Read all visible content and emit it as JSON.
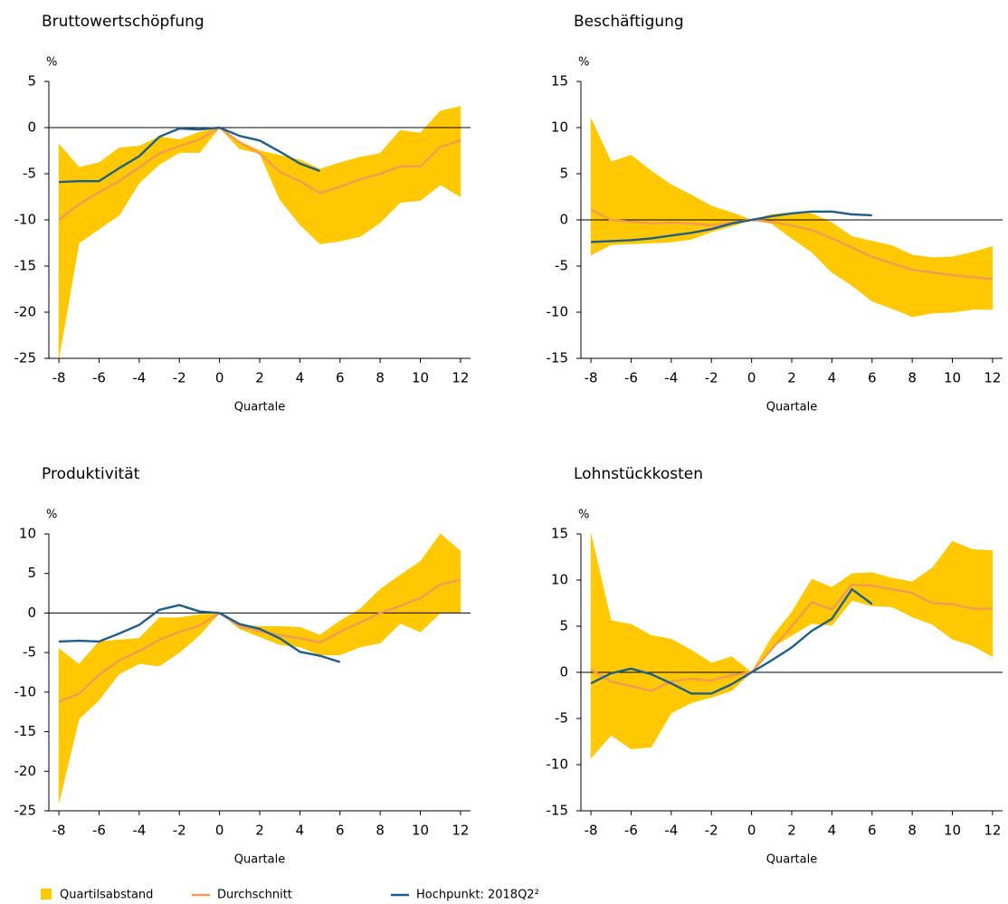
{
  "legend": [
    {
      "name": "Quartilsabstand",
      "color": "#ffc800"
    },
    {
      "name": "Durchschnitt",
      "color": "#f39a56"
    },
    {
      "name": "Hochpunkt: 2018Q2²",
      "color": "#1d5f8a"
    }
  ],
  "chart_data": [
    {
      "type": "line",
      "title": "Bruttowertschöpfung",
      "y_label": "%",
      "x_label": "Quartale",
      "x": [
        -8,
        -7,
        -6,
        -5,
        -4,
        -3,
        -2,
        -1,
        0,
        1,
        2,
        3,
        4,
        5,
        6,
        7,
        8,
        9,
        10,
        11,
        12
      ],
      "xlim": [
        -8.5,
        12.5
      ],
      "xticks": [
        -8,
        -6,
        -4,
        -2,
        0,
        2,
        4,
        6,
        8,
        10,
        12
      ],
      "ylim": [
        -25,
        5
      ],
      "yticks": [
        -25,
        -20,
        -15,
        -10,
        -5,
        0,
        5
      ],
      "band": {
        "upper": [
          -1.8,
          -4.3,
          -3.8,
          -2.2,
          -2,
          -1,
          -1.3,
          -0.5,
          0,
          -1.5,
          -2.5,
          -3,
          -3.5,
          -4.5,
          -3.8,
          -3.2,
          -2.8,
          -0.3,
          -0.6,
          1.8,
          2.3
        ],
        "lower": [
          -25,
          -12.5,
          -11,
          -9.5,
          -6,
          -4,
          -2.7,
          -2.7,
          0,
          -2.3,
          -2.8,
          -7.8,
          -10.5,
          -12.6,
          -12.3,
          -11.8,
          -10.3,
          -8.1,
          -7.9,
          -6.2,
          -7.5
        ]
      },
      "series": [
        {
          "values": [
            -10,
            -8.3,
            -7,
            -5.8,
            -4.3,
            -2.8,
            -2,
            -1.3,
            0,
            -1.6,
            -2.8,
            -4.8,
            -5.8,
            -7.1,
            -6.4,
            -5.6,
            -5,
            -4.2,
            -4.2,
            -2.1,
            -1.4
          ]
        },
        {
          "values": [
            -5.9,
            -5.8,
            -5.8,
            -4.4,
            -3.1,
            -1,
            -0.1,
            -0.2,
            0,
            -0.9,
            -1.4,
            -2.6,
            -3.9,
            -4.7,
            null,
            null,
            null,
            null,
            null,
            null,
            null
          ]
        }
      ]
    },
    {
      "type": "line",
      "title": "Beschäftigung",
      "y_label": "%",
      "x_label": "Quartale",
      "x": [
        -8,
        -7,
        -6,
        -5,
        -4,
        -3,
        -2,
        -1,
        0,
        1,
        2,
        3,
        4,
        5,
        6,
        7,
        8,
        9,
        10,
        11,
        12
      ],
      "xlim": [
        -8.5,
        12.5
      ],
      "xticks": [
        -8,
        -6,
        -4,
        -2,
        0,
        2,
        4,
        6,
        8,
        10,
        12
      ],
      "ylim": [
        -15,
        15
      ],
      "yticks": [
        -15,
        -10,
        -5,
        0,
        5,
        10,
        15
      ],
      "band": {
        "upper": [
          11,
          6.3,
          7,
          5.3,
          3.8,
          2.7,
          1.5,
          0.8,
          0,
          0.6,
          0.8,
          0.7,
          -0.3,
          -1.8,
          -2.3,
          -2.8,
          -3.8,
          -4.1,
          -4,
          -3.5,
          -2.9
        ],
        "lower": [
          -3.8,
          -2.7,
          -2.6,
          -2.5,
          -2.4,
          -2.1,
          -1.3,
          -0.7,
          0,
          -0.4,
          -2,
          -3.5,
          -5.7,
          -7.1,
          -8.8,
          -9.6,
          -10.5,
          -10.1,
          -10,
          -9.7,
          -9.7
        ]
      },
      "series": [
        {
          "values": [
            1.1,
            0,
            -0.2,
            -0.4,
            -0.3,
            -0.4,
            -0.6,
            -0.3,
            0,
            -0.2,
            -0.6,
            -1.1,
            -2,
            -3,
            -4,
            -4.7,
            -5.4,
            -5.7,
            -6,
            -6.2,
            -6.4
          ]
        },
        {
          "values": [
            -2.4,
            -2.3,
            -2.2,
            -2,
            -1.7,
            -1.4,
            -1,
            -0.4,
            0,
            0.4,
            0.7,
            0.9,
            0.9,
            0.6,
            0.5,
            null,
            null,
            null,
            null,
            null,
            null
          ]
        }
      ]
    },
    {
      "type": "line",
      "title": "Produktivität",
      "y_label": "%",
      "x_label": "Quartale",
      "x": [
        -8,
        -7,
        -6,
        -5,
        -4,
        -3,
        -2,
        -1,
        0,
        1,
        2,
        3,
        4,
        5,
        6,
        7,
        8,
        9,
        10,
        11,
        12
      ],
      "xlim": [
        -8.5,
        12.5
      ],
      "xticks": [
        -8,
        -6,
        -4,
        -2,
        0,
        2,
        4,
        6,
        8,
        10,
        12
      ],
      "ylim": [
        -25,
        10
      ],
      "yticks": [
        -25,
        -20,
        -15,
        -10,
        -5,
        0,
        5,
        10
      ],
      "band": {
        "upper": [
          -4.5,
          -6.5,
          -3.6,
          -3.4,
          -3.2,
          -0.6,
          -0.6,
          -0.2,
          0,
          -1.5,
          -1.7,
          -1.7,
          -1.8,
          -2.8,
          -1,
          0.5,
          3,
          4.8,
          6.5,
          10,
          7.8
        ],
        "lower": [
          -24,
          -13.4,
          -11,
          -7.7,
          -6.4,
          -6.7,
          -5,
          -2.8,
          0,
          -2,
          -3,
          -4,
          -4.3,
          -5.3,
          -5.3,
          -4.3,
          -3.8,
          -1.3,
          -2.4,
          0,
          0
        ]
      },
      "series": [
        {
          "values": [
            -11.2,
            -10.2,
            -7.8,
            -6,
            -4.8,
            -3.4,
            -2.4,
            -1.6,
            0,
            -1.7,
            -2.3,
            -2.8,
            -3.2,
            -3.7,
            -2.4,
            -1.2,
            0,
            0.9,
            1.9,
            3.6,
            4.2
          ]
        },
        {
          "values": [
            -3.6,
            -3.5,
            -3.6,
            -2.6,
            -1.5,
            0.4,
            1,
            0.2,
            0,
            -1.4,
            -2,
            -3.2,
            -4.9,
            -5.4,
            -6.2,
            null,
            null,
            null,
            null,
            null,
            null
          ]
        }
      ]
    },
    {
      "type": "line",
      "title": "Lohnstückkosten",
      "y_label": "%",
      "x_label": "Quartale",
      "x": [
        -8,
        -7,
        -6,
        -5,
        -4,
        -3,
        -2,
        -1,
        0,
        1,
        2,
        3,
        4,
        5,
        6,
        7,
        8,
        9,
        10,
        11,
        12
      ],
      "xlim": [
        -8.5,
        12.5
      ],
      "xticks": [
        -8,
        -6,
        -4,
        -2,
        0,
        2,
        4,
        6,
        8,
        10,
        12
      ],
      "ylim": [
        -15,
        15
      ],
      "yticks": [
        -15,
        -10,
        -5,
        0,
        5,
        10,
        15
      ],
      "band": {
        "upper": [
          15,
          5.6,
          5.2,
          4,
          3.6,
          2.4,
          1,
          1.7,
          0,
          3.8,
          6.5,
          10.1,
          9.2,
          10.7,
          10.8,
          10.2,
          9.8,
          11.3,
          14.2,
          13.3,
          13.2
        ],
        "lower": [
          -9.3,
          -6.8,
          -8.3,
          -8.1,
          -4.4,
          -3.3,
          -2.7,
          -2,
          0,
          2.7,
          4,
          5.3,
          5.1,
          7.8,
          7.2,
          7.1,
          6,
          5.2,
          3.6,
          2.9,
          1.7
        ]
      },
      "series": [
        {
          "values": [
            0.3,
            -1,
            -1.5,
            -2,
            -1,
            -0.7,
            -0.9,
            -0.3,
            0,
            2.5,
            5,
            7.6,
            6.8,
            9.5,
            9.4,
            9,
            8.6,
            7.5,
            7.4,
            6.9,
            6.9
          ]
        },
        {
          "values": [
            -1.2,
            -0.1,
            0.4,
            -0.2,
            -1.2,
            -2.3,
            -2.3,
            -1.3,
            0,
            1.3,
            2.7,
            4.5,
            5.8,
            9,
            7.4,
            null,
            null,
            null,
            null,
            null,
            null
          ]
        }
      ]
    }
  ]
}
